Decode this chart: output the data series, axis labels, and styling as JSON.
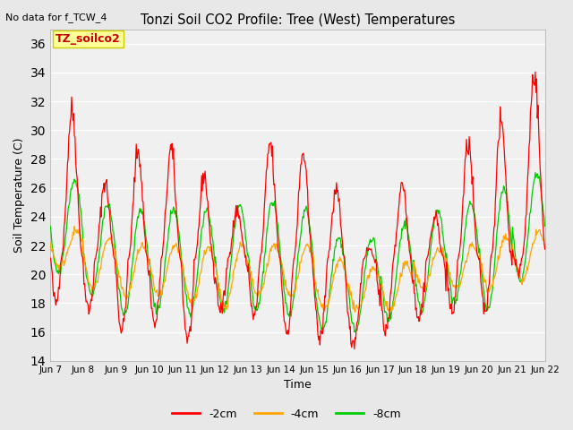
{
  "title": "Tonzi Soil CO2 Profile: Tree (West) Temperatures",
  "no_data_text": "No data for f_TCW_4",
  "annotation_text": "TZ_soilco2",
  "xlabel": "Time",
  "ylabel": "Soil Temperature (C)",
  "ylim": [
    14,
    37
  ],
  "yticks": [
    14,
    16,
    18,
    20,
    22,
    24,
    26,
    28,
    30,
    32,
    34,
    36
  ],
  "xtick_labels": [
    "Jun 7",
    "Jun 8",
    "Jun 9",
    "Jun 10",
    "Jun 11",
    "Jun 12",
    "Jun 13",
    "Jun 14",
    "Jun 15",
    "Jun 16",
    "Jun 17",
    "Jun 18",
    "Jun 19",
    "Jun 20",
    "Jun 21",
    "Jun 22"
  ],
  "line_colors": {
    "2cm": "#ff0000",
    "4cm": "#ffa500",
    "8cm": "#00cc00"
  },
  "legend_labels": [
    "-2cm",
    "-4cm",
    "-8cm"
  ],
  "bg_color": "#e8e8e8",
  "plot_bg_color": "#e8e8e8",
  "annotation_bg": "#ffff99",
  "annotation_border": "#cccc00",
  "n_days": 15,
  "pts_per_day": 48,
  "figsize": [
    6.4,
    4.8
  ],
  "dpi": 100
}
